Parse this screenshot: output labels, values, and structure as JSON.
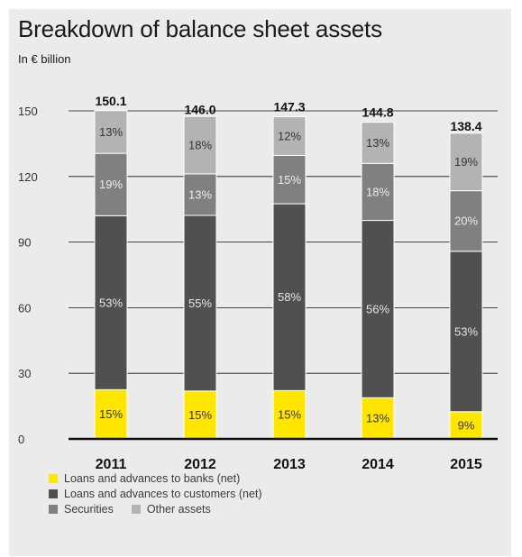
{
  "title": "Breakdown of balance sheet assets",
  "subtitle": "In € billion",
  "chart_data": {
    "type": "bar",
    "stacked": true,
    "title": "Breakdown of balance sheet assets",
    "unit": "In € billion",
    "categories": [
      "2011",
      "2012",
      "2013",
      "2014",
      "2015"
    ],
    "totals": [
      150.1,
      146.0,
      147.3,
      144.8,
      138.4
    ],
    "total_labels": [
      "150.1",
      "146.0",
      "147.3",
      "144.8",
      "138.4"
    ],
    "ylim": [
      0,
      150
    ],
    "yticks": [
      0,
      30,
      60,
      90,
      120,
      150
    ],
    "grid": true,
    "legend_position": "bottom-left",
    "series": [
      {
        "name": "Loans and advances to banks (net)",
        "color": "#ffe600",
        "label_color": "#333333",
        "percent": [
          15,
          15,
          15,
          13,
          9
        ],
        "labels": [
          "15%",
          "15%",
          "15%",
          "13%",
          "9%"
        ]
      },
      {
        "name": "Loans and advances to customers (net)",
        "color": "#505050",
        "label_color": "#e6e6e6",
        "percent": [
          53,
          55,
          58,
          56,
          53
        ],
        "labels": [
          "53%",
          "55%",
          "58%",
          "56%",
          "53%"
        ]
      },
      {
        "name": "Securities",
        "color": "#808080",
        "label_color": "#ececec",
        "percent": [
          19,
          13,
          15,
          18,
          20
        ],
        "labels": [
          "19%",
          "13%",
          "15%",
          "18%",
          "20%"
        ]
      },
      {
        "name": "Other assets",
        "color": "#b3b3b3",
        "label_color": "#333333",
        "percent": [
          13,
          18,
          12,
          13,
          19
        ],
        "labels": [
          "13%",
          "18%",
          "12%",
          "13%",
          "19%"
        ]
      }
    ]
  }
}
